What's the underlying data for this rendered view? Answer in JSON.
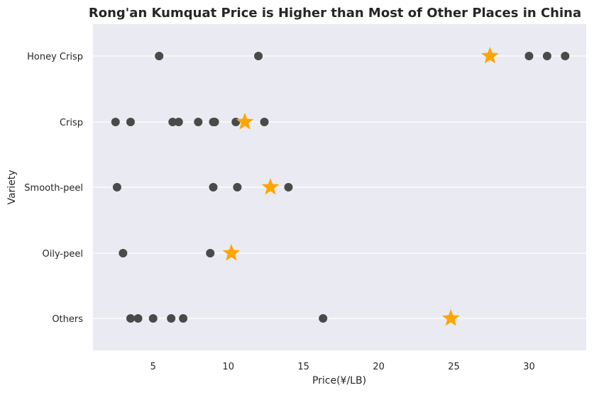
{
  "chart_data": {
    "type": "scatter",
    "title": "Rong'an Kumquat Price is Higher than Most of Other Places in China",
    "xlabel": "Price(¥/LB)",
    "ylabel": "Variety",
    "xlim": [
      1.0,
      33.8
    ],
    "xticks": [
      5,
      10,
      15,
      20,
      25,
      30
    ],
    "categories": [
      "Honey Crisp",
      "Crisp",
      "Smooth-peel",
      "Oily-peel",
      "Others"
    ],
    "grid": true,
    "background": "#eaeaf2",
    "point_color": "#4a4a4a",
    "highlight_color": "#ffa500",
    "series": [
      {
        "marker": "circle",
        "points": [
          {
            "category": "Honey Crisp",
            "x": 5.4
          },
          {
            "category": "Honey Crisp",
            "x": 12.0
          },
          {
            "category": "Honey Crisp",
            "x": 30.0
          },
          {
            "category": "Honey Crisp",
            "x": 31.2
          },
          {
            "category": "Honey Crisp",
            "x": 32.4
          },
          {
            "category": "Crisp",
            "x": 2.5
          },
          {
            "category": "Crisp",
            "x": 3.5
          },
          {
            "category": "Crisp",
            "x": 6.3
          },
          {
            "category": "Crisp",
            "x": 6.7
          },
          {
            "category": "Crisp",
            "x": 8.0
          },
          {
            "category": "Crisp",
            "x": 9.0
          },
          {
            "category": "Crisp",
            "x": 9.1
          },
          {
            "category": "Crisp",
            "x": 10.5
          },
          {
            "category": "Crisp",
            "x": 12.4
          },
          {
            "category": "Smooth-peel",
            "x": 2.6
          },
          {
            "category": "Smooth-peel",
            "x": 9.0
          },
          {
            "category": "Smooth-peel",
            "x": 10.6
          },
          {
            "category": "Smooth-peel",
            "x": 14.0
          },
          {
            "category": "Oily-peel",
            "x": 3.0
          },
          {
            "category": "Oily-peel",
            "x": 8.8
          },
          {
            "category": "Others",
            "x": 3.5
          },
          {
            "category": "Others",
            "x": 4.0
          },
          {
            "category": "Others",
            "x": 5.0
          },
          {
            "category": "Others",
            "x": 6.2
          },
          {
            "category": "Others",
            "x": 7.0
          },
          {
            "category": "Others",
            "x": 16.3
          }
        ]
      },
      {
        "marker": "star",
        "points": [
          {
            "category": "Honey Crisp",
            "x": 27.4
          },
          {
            "category": "Crisp",
            "x": 11.1
          },
          {
            "category": "Smooth-peel",
            "x": 12.8
          },
          {
            "category": "Oily-peel",
            "x": 10.2
          },
          {
            "category": "Others",
            "x": 24.8
          }
        ]
      }
    ]
  }
}
